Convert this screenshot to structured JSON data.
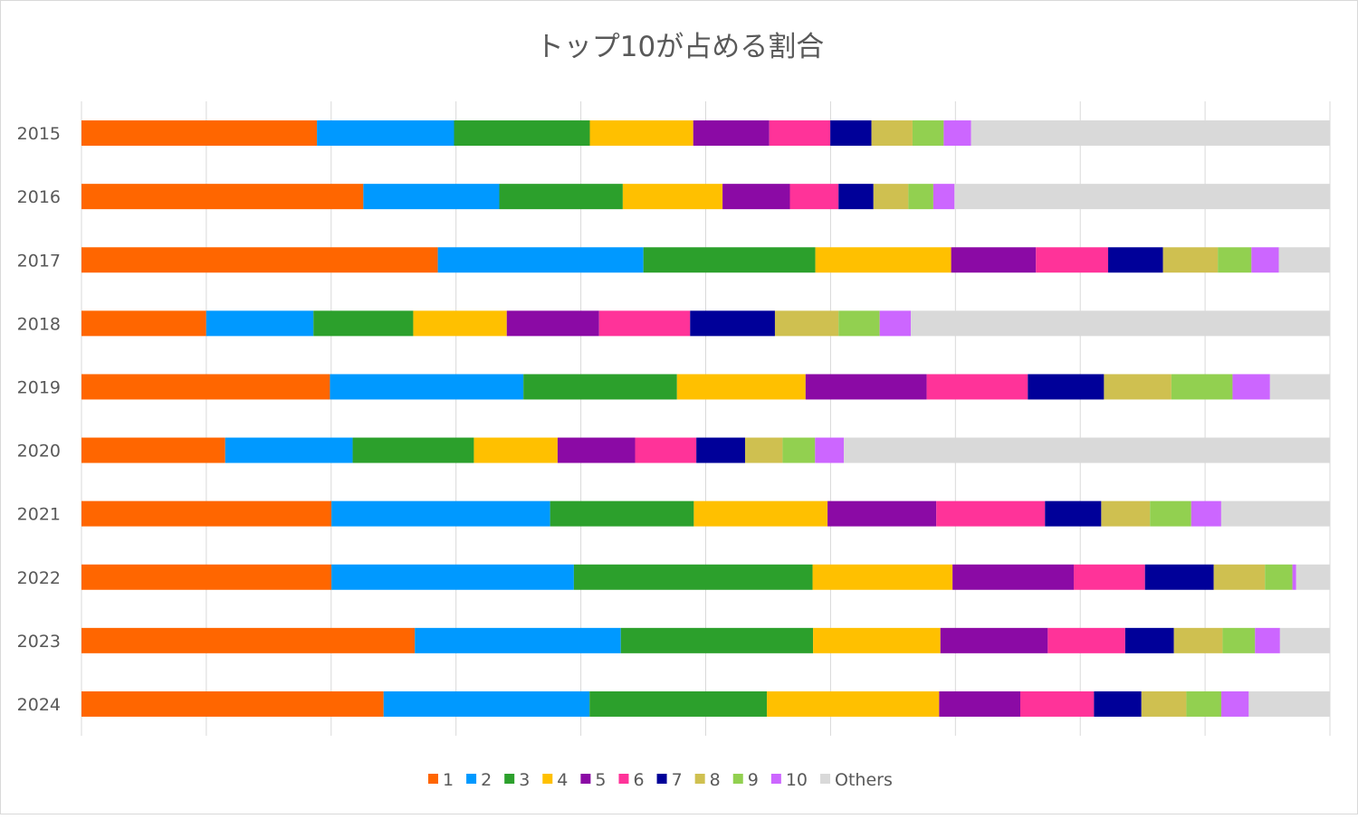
{
  "chart_data": {
    "type": "bar",
    "orientation": "horizontal",
    "stacked": "percent",
    "title": "トップ10が占める割合",
    "xlabel": "",
    "ylabel": "",
    "xlim": [
      0,
      100
    ],
    "grid": true,
    "legend_position": "bottom",
    "categories": [
      "2015",
      "2016",
      "2017",
      "2018",
      "2019",
      "2020",
      "2021",
      "2022",
      "2023",
      "2024"
    ],
    "series": [
      {
        "name": "1",
        "color": "#ff6600",
        "values": [
          18.9,
          22.6,
          28.6,
          10.0,
          19.9,
          11.5,
          20.0,
          20.0,
          26.7,
          24.2
        ]
      },
      {
        "name": "2",
        "color": "#0099ff",
        "values": [
          11.0,
          10.9,
          16.5,
          8.6,
          15.5,
          10.2,
          17.5,
          19.4,
          16.5,
          16.5
        ]
      },
      {
        "name": "3",
        "color": "#2ca02c",
        "values": [
          10.9,
          9.9,
          13.8,
          8.0,
          12.3,
          9.7,
          11.5,
          19.1,
          15.4,
          14.2
        ]
      },
      {
        "name": "4",
        "color": "#ffc000",
        "values": [
          8.3,
          8.0,
          10.9,
          7.5,
          10.3,
          6.7,
          10.7,
          11.2,
          10.2,
          13.8
        ]
      },
      {
        "name": "5",
        "color": "#8b0aa5",
        "values": [
          6.1,
          5.4,
          6.8,
          7.4,
          9.7,
          6.2,
          8.7,
          9.7,
          8.6,
          6.5
        ]
      },
      {
        "name": "6",
        "color": "#ff3399",
        "values": [
          4.9,
          3.9,
          5.8,
          7.3,
          8.1,
          4.9,
          8.7,
          5.7,
          6.2,
          5.9
        ]
      },
      {
        "name": "7",
        "color": "#000099",
        "values": [
          3.3,
          2.8,
          4.4,
          6.8,
          6.1,
          3.9,
          4.5,
          5.5,
          3.9,
          3.8
        ]
      },
      {
        "name": "8",
        "color": "#cfc050",
        "values": [
          3.3,
          2.8,
          4.4,
          5.1,
          5.4,
          3.0,
          3.9,
          4.1,
          3.9,
          3.6
        ]
      },
      {
        "name": "9",
        "color": "#92d050",
        "values": [
          2.5,
          2.0,
          2.7,
          3.3,
          4.9,
          2.6,
          3.3,
          2.2,
          2.6,
          2.8
        ]
      },
      {
        "name": "10",
        "color": "#cc66ff",
        "values": [
          2.2,
          1.7,
          2.2,
          2.5,
          3.0,
          2.3,
          2.4,
          0.3,
          2.0,
          2.2
        ]
      },
      {
        "name": "Others",
        "color": "#d9d9d9",
        "values": [
          28.8,
          30.1,
          4.1,
          33.6,
          4.8,
          38.9,
          8.7,
          2.7,
          4.0,
          6.5
        ]
      }
    ]
  }
}
